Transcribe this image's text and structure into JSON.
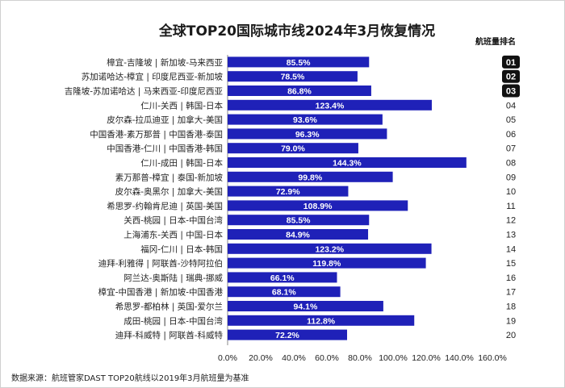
{
  "chart_data": {
    "type": "bar",
    "orientation": "horizontal",
    "title": "全球TOP20国际城市线2024年3月恢复情况",
    "rank_header": "航班量排名",
    "categories": [
      "樟宜-吉隆坡 | 新加坡-马来西亚",
      "苏加诺哈达-樟宜 | 印度尼西亚-新加坡",
      "吉隆坡-苏加诺哈达 | 马来西亚-印度尼西亚",
      "仁川-关西 | 韩国-日本",
      "皮尔森-拉瓜迪亚 | 加拿大-美国",
      "中国香港-素万那普 | 中国香港-泰国",
      "中国香港-仁川 | 中国香港-韩国",
      "仁川-成田 | 韩国-日本",
      "素万那普-樟宜 | 泰国-新加坡",
      "皮尔森-奥黑尔 | 加拿大-美国",
      "希思罗-约翰肯尼迪 | 英国-美国",
      "关西-桃园 | 日本-中国台湾",
      "上海浦东-关西 | 中国-日本",
      "福冈-仁川 | 日本-韩国",
      "迪拜-利雅得 | 阿联酋-沙特阿拉伯",
      "阿兰达-奥斯陆 | 瑞典-挪威",
      "樟宜-中国香港 | 新加坡-中国香港",
      "希思罗-都柏林 | 英国-爱尔兰",
      "成田-桃园 | 日本-中国台湾",
      "迪拜-科威特 | 阿联酋-科威特"
    ],
    "values": [
      85.5,
      78.5,
      86.8,
      123.4,
      93.6,
      96.3,
      79.0,
      144.3,
      99.8,
      72.9,
      108.9,
      85.5,
      84.9,
      123.2,
      119.8,
      66.1,
      68.1,
      94.1,
      112.8,
      72.2
    ],
    "value_labels": [
      "85.5%",
      "78.5%",
      "86.8%",
      "123.4%",
      "93.6%",
      "96.3%",
      "79.0%",
      "144.3%",
      "99.8%",
      "72.9%",
      "108.9%",
      "85.5%",
      "84.9%",
      "123.2%",
      "119.8%",
      "66.1%",
      "68.1%",
      "94.1%",
      "112.8%",
      "72.2%"
    ],
    "ranks": [
      "01",
      "02",
      "03",
      "04",
      "05",
      "06",
      "07",
      "08",
      "09",
      "10",
      "11",
      "12",
      "13",
      "14",
      "15",
      "16",
      "17",
      "18",
      "19",
      "20"
    ],
    "highlighted_ranks": 3,
    "xlim": [
      0,
      160
    ],
    "xticks": [
      0,
      20,
      40,
      60,
      80,
      100,
      120,
      140,
      160
    ],
    "xtick_labels": [
      "0.0%",
      "20.0%",
      "40.0%",
      "60.0%",
      "80.0%",
      "100.0%",
      "120.0%",
      "140.0%",
      "160.0%"
    ],
    "grid": false,
    "legend": "none",
    "bar_color": "#1f21b8",
    "rank_badge_color": "#111111",
    "source": "数据来源：航班管家DAST TOP20航线以2019年3月航班量为基准"
  }
}
